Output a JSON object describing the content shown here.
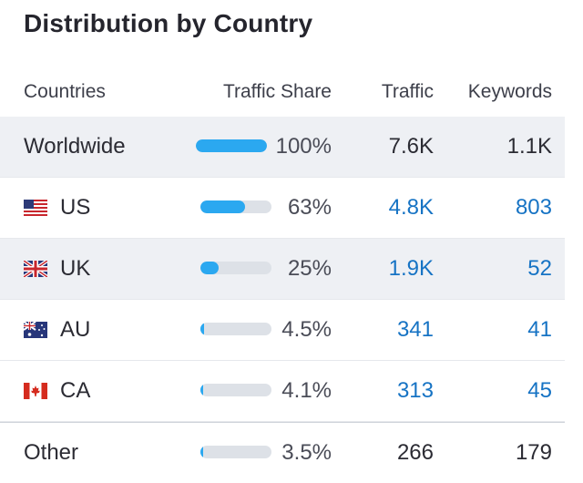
{
  "title": "Distribution by Country",
  "columns": {
    "country": "Countries",
    "share": "Traffic Share",
    "traffic": "Traffic",
    "keywords": "Keywords"
  },
  "colors": {
    "bar_fill": "#2ba8f0",
    "bar_track": "#dde1e7",
    "link": "#1673c4"
  },
  "rows": [
    {
      "name": "Worldwide",
      "flag": null,
      "share_pct": 100,
      "share": "100%",
      "traffic": "7.6K",
      "keywords": "1.1K",
      "linked": false
    },
    {
      "name": "US",
      "flag": "us-flag-icon",
      "share_pct": 63,
      "share": "63%",
      "traffic": "4.8K",
      "keywords": "803",
      "linked": true
    },
    {
      "name": "UK",
      "flag": "uk-flag-icon",
      "share_pct": 25,
      "share": "25%",
      "traffic": "1.9K",
      "keywords": "52",
      "linked": true
    },
    {
      "name": "AU",
      "flag": "au-flag-icon",
      "share_pct": 4.5,
      "share": "4.5%",
      "traffic": "341",
      "keywords": "41",
      "linked": true
    },
    {
      "name": "CA",
      "flag": "ca-flag-icon",
      "share_pct": 4.1,
      "share": "4.1%",
      "traffic": "313",
      "keywords": "45",
      "linked": true
    },
    {
      "name": "Other",
      "flag": null,
      "share_pct": 3.5,
      "share": "3.5%",
      "traffic": "266",
      "keywords": "179",
      "linked": false
    }
  ]
}
